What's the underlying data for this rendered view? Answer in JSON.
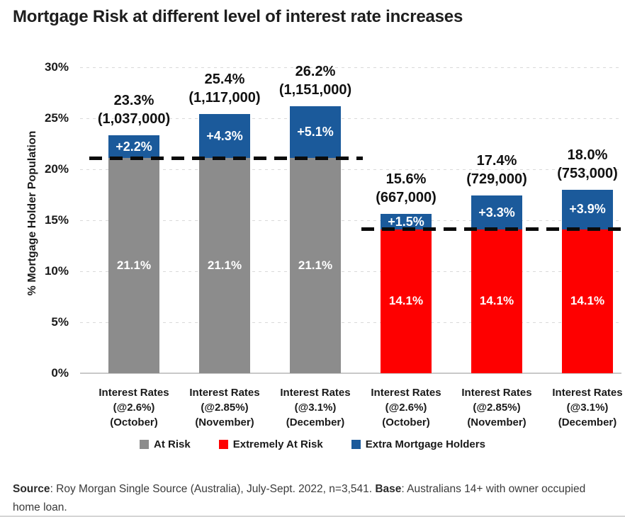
{
  "header": {
    "title": "Mortgage Risk at different level of interest rate increases"
  },
  "footer": {
    "source_label": "Source",
    "source_text": ": Roy Morgan Single Source (Australia), July-Sept. 2022, n=3,541. ",
    "base_label": "Base",
    "base_text": ": Australians 14+ with owner occupied home loan."
  },
  "chart_data": {
    "type": "bar",
    "stacked": true,
    "title": "Mortgage Risk at different level of interest rate increases",
    "ylabel": "% Mortgage Holder Population",
    "ylim": [
      0,
      30
    ],
    "yticks": [
      0,
      5,
      10,
      15,
      20,
      25,
      30
    ],
    "ytick_labels": [
      "0%",
      "5%",
      "10%",
      "15%",
      "20%",
      "25%",
      "30%"
    ],
    "grid": "horizontal-dashed",
    "legend_position": "bottom",
    "legend": [
      {
        "label": "At Risk",
        "color": "#8c8c8c"
      },
      {
        "label": "Extremely At Risk",
        "color": "#fe0000"
      },
      {
        "label": "Extra Mortgage Holders",
        "color": "#1b5a9b"
      }
    ],
    "categories": [
      {
        "lines": [
          "Interest Rates",
          "(@2.6%)",
          "(October)"
        ]
      },
      {
        "lines": [
          "Interest Rates",
          "(@2.85%)",
          "(November)"
        ]
      },
      {
        "lines": [
          "Interest Rates",
          "(@3.1%)",
          "(December)"
        ]
      },
      {
        "lines": [
          "Interest Rates",
          "(@2.6%)",
          "(October)"
        ]
      },
      {
        "lines": [
          "Interest Rates",
          "(@2.85%)",
          "(November)"
        ]
      },
      {
        "lines": [
          "Interest Rates",
          "(@3.1%)",
          "(December)"
        ]
      }
    ],
    "bars": [
      {
        "base_series": "At Risk",
        "base_value": 21.1,
        "base_label": "21.1%",
        "extra_series": "Extra Mortgage Holders",
        "extra_value": 2.2,
        "extra_label": "+2.2%",
        "total_value": 23.3,
        "total_label": "23.3%",
        "population_label": "(1,037,000)"
      },
      {
        "base_series": "At Risk",
        "base_value": 21.1,
        "base_label": "21.1%",
        "extra_series": "Extra Mortgage Holders",
        "extra_value": 4.3,
        "extra_label": "+4.3%",
        "total_value": 25.4,
        "total_label": "25.4%",
        "population_label": "(1,117,000)"
      },
      {
        "base_series": "At Risk",
        "base_value": 21.1,
        "base_label": "21.1%",
        "extra_series": "Extra Mortgage Holders",
        "extra_value": 5.1,
        "extra_label": "+5.1%",
        "total_value": 26.2,
        "total_label": "26.2%",
        "population_label": "(1,151,000)"
      },
      {
        "base_series": "Extremely At Risk",
        "base_value": 14.1,
        "base_label": "14.1%",
        "extra_series": "Extra Mortgage Holders",
        "extra_value": 1.5,
        "extra_label": "+1.5%",
        "total_value": 15.6,
        "total_label": "15.6%",
        "population_label": "(667,000)"
      },
      {
        "base_series": "Extremely At Risk",
        "base_value": 14.1,
        "base_label": "14.1%",
        "extra_series": "Extra Mortgage Holders",
        "extra_value": 3.3,
        "extra_label": "+3.3%",
        "total_value": 17.4,
        "total_label": "17.4%",
        "population_label": "(729,000)"
      },
      {
        "base_series": "Extremely At Risk",
        "base_value": 14.1,
        "base_label": "14.1%",
        "extra_series": "Extra Mortgage Holders",
        "extra_value": 3.9,
        "extra_label": "+3.9%",
        "total_value": 18.0,
        "total_label": "18.0%",
        "population_label": "(753,000)"
      }
    ],
    "reference_lines": [
      {
        "value": 21.1,
        "bar_span": [
          0,
          3
        ],
        "style": "dashed-black"
      },
      {
        "value": 14.1,
        "bar_span": [
          3,
          6
        ],
        "style": "dashed-black"
      }
    ]
  }
}
